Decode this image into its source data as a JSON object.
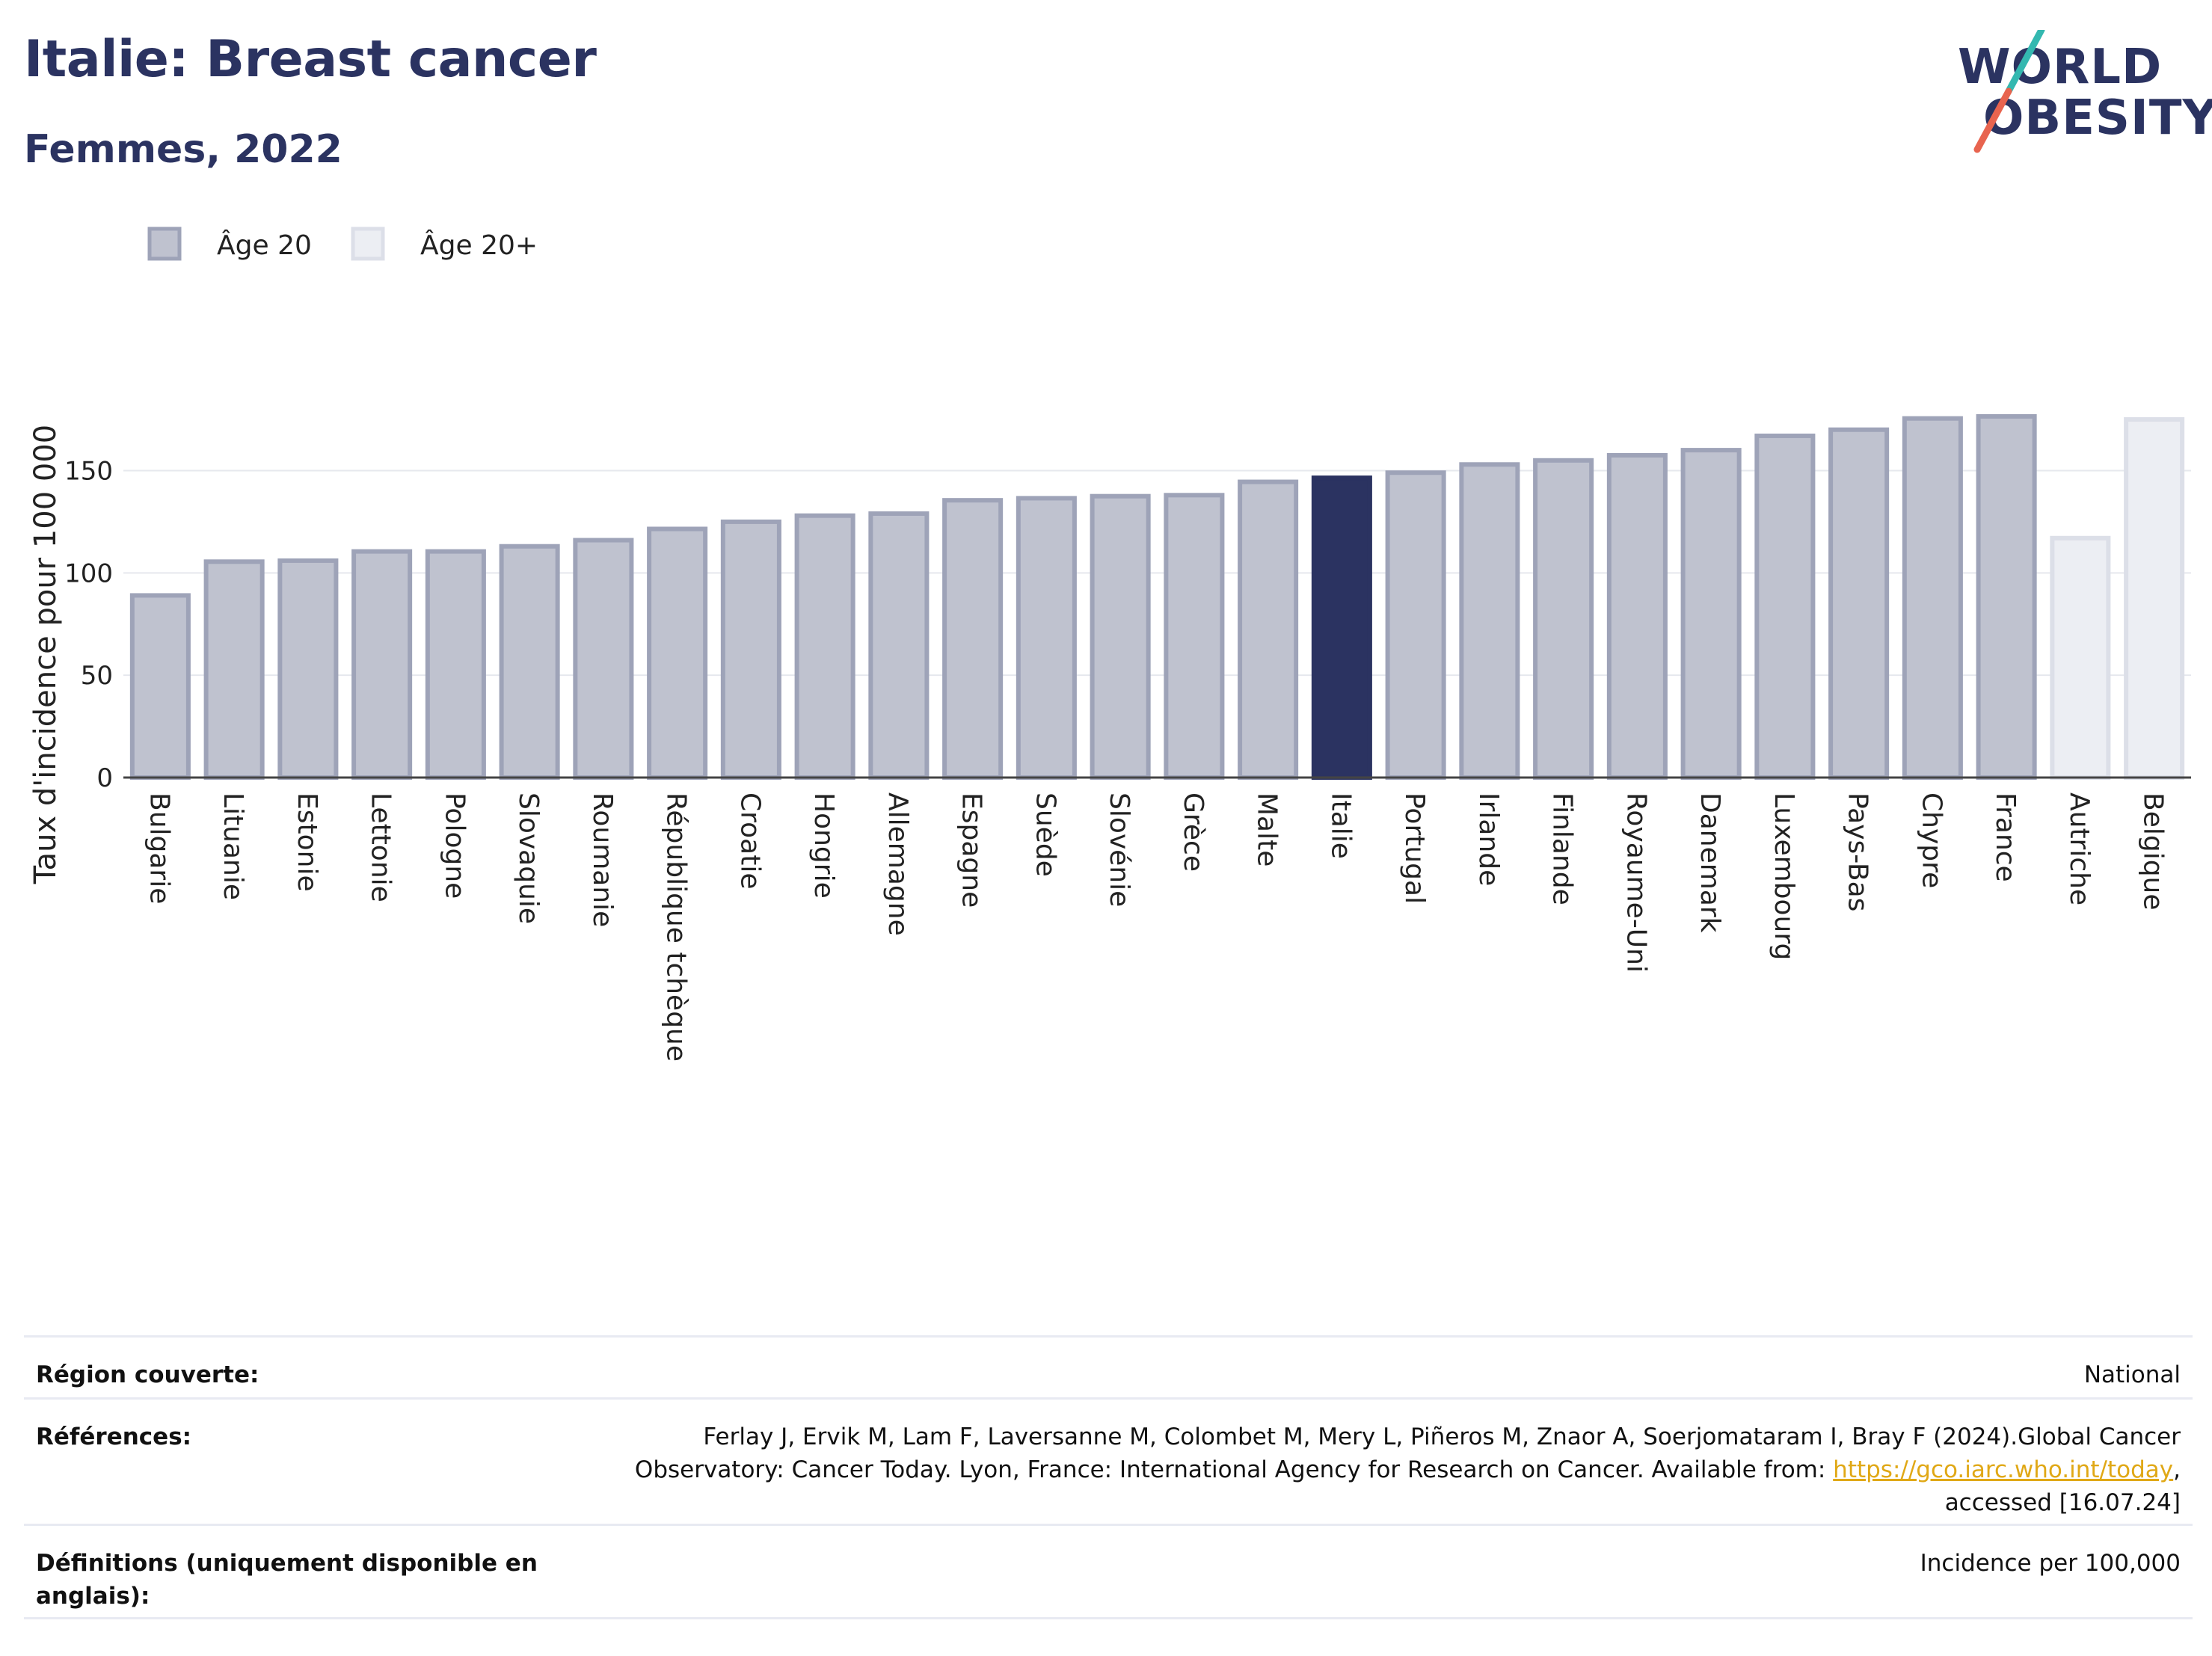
{
  "header": {
    "title": "Italie: Breast cancer",
    "subtitle": "Femmes, 2022"
  },
  "logo": {
    "line1": "WORLD",
    "line2": "OBESITY"
  },
  "chart_data": {
    "type": "bar",
    "ylabel": "Taux d'incidence pour 100 000",
    "ylim": [
      0,
      190
    ],
    "yticks": [
      0,
      50,
      100,
      150
    ],
    "grid": true,
    "legend_position": "top-left",
    "legend": [
      {
        "label": "Âge 20",
        "color": "#bfc2cf",
        "border": "#9ea3b8"
      },
      {
        "label": "Âge 20+",
        "color": "#eceef3",
        "border": "#dcdfe8"
      }
    ],
    "highlight_color": "#2b3361",
    "categories": [
      "Bulgarie",
      "Lituanie",
      "Estonie",
      "Lettonie",
      "Pologne",
      "Slovaquie",
      "Roumanie",
      "République tchèque",
      "Croatie",
      "Hongrie",
      "Allemagne",
      "Espagne",
      "Suède",
      "Slovénie",
      "Grèce",
      "Malte",
      "Italie",
      "Portugal",
      "Irlande",
      "Finlande",
      "Royaume-Uni",
      "Danemark",
      "Luxembourg",
      "Pays-Bas",
      "Chypre",
      "France",
      "Autriche",
      "Belgique"
    ],
    "values": [
      89,
      105.5,
      106,
      110.5,
      110.5,
      113,
      116,
      121.5,
      125,
      128,
      129,
      135.5,
      136.5,
      137.5,
      138,
      144.5,
      146.5,
      149,
      153,
      155,
      157.5,
      160,
      167,
      170,
      175.5,
      176.5,
      117,
      175
    ],
    "series_by_bar": [
      "Âge 20",
      "Âge 20",
      "Âge 20",
      "Âge 20",
      "Âge 20",
      "Âge 20",
      "Âge 20",
      "Âge 20",
      "Âge 20",
      "Âge 20",
      "Âge 20",
      "Âge 20",
      "Âge 20",
      "Âge 20",
      "Âge 20",
      "Âge 20",
      "Âge 20",
      "Âge 20",
      "Âge 20",
      "Âge 20",
      "Âge 20",
      "Âge 20",
      "Âge 20",
      "Âge 20",
      "Âge 20",
      "Âge 20",
      "Âge 20+",
      "Âge 20+"
    ],
    "highlight": "Italie"
  },
  "footer": {
    "region_label": "Région couverte:",
    "region_value": "National",
    "references_label": "Références:",
    "references_line1": "Ferlay J, Ervik M, Lam F, Laversanne M, Colombet M, Mery L, Piñeros M, Znaor A, Soerjomataram I, Bray F (2024).Global Cancer",
    "references_line2": "Observatory: Cancer Today. Lyon, France: International Agency for Research on Cancer. Available from: ",
    "references_link": "https://gco.iarc.who.int/today",
    "references_line2_end": ",",
    "references_line3": "accessed [16.07.24]",
    "definitions_label": "Définitions (uniquement disponible en anglais):",
    "definitions_value": "Incidence per 100,000"
  }
}
